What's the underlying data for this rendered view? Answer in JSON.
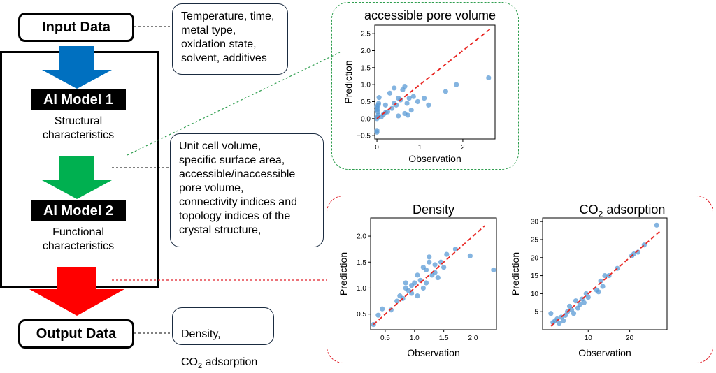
{
  "input_label": "Input Data",
  "output_label": "Output Data",
  "model1": {
    "title": "AI Model 1",
    "desc": "Structural\ncharacteristics"
  },
  "model2": {
    "title": "AI Model 2",
    "desc": "Functional\ncharacteristics"
  },
  "notes": {
    "inputs": "Temperature, time,\nmetal type,\noxidation state,\nsolvent, additives",
    "structural": "Unit cell volume,\nspecific surface area,\naccessible/inaccessible\npore volume,\nconnectivity indices and\ntopology indices of the\ncrystal structure,",
    "output_line1": "Density,",
    "output_line2_prefix": "CO",
    "output_line2_sub": "2",
    "output_line2_suffix": " adsorption"
  },
  "colors": {
    "arrow1": "#0070c0",
    "arrow2": "#00b050",
    "arrow3": "#ff0000",
    "green_border": "#2f9e4f",
    "red_border": "#e0202a",
    "point": "#5b9bd5",
    "fit": "#e8231f"
  },
  "chart_data": [
    {
      "type": "scatter",
      "title": "accessible pore volume",
      "xlabel": "Observation",
      "ylabel": "Prediction",
      "xlim": [
        -0.05,
        2.75
      ],
      "ylim": [
        -0.6,
        2.75
      ],
      "xticks": [
        0,
        1,
        2
      ],
      "xtick_labels": [
        "0",
        "1",
        "2"
      ],
      "yticks": [
        -0.5,
        0,
        0.5,
        1,
        1.5,
        2,
        2.5
      ],
      "ytick_labels": [
        "−0.5",
        "0.0",
        "0.5",
        "1.0",
        "1.5",
        "2.0",
        "2.5"
      ],
      "fit_line": [
        [
          0,
          0
        ],
        [
          2.65,
          2.65
        ]
      ],
      "points": [
        [
          0,
          -0.4
        ],
        [
          0,
          -0.35
        ],
        [
          0,
          0
        ],
        [
          0.02,
          0.05
        ],
        [
          0.03,
          0.1
        ],
        [
          0.02,
          0.2
        ],
        [
          0,
          0.25
        ],
        [
          0.01,
          0.3
        ],
        [
          0,
          0.35
        ],
        [
          0.03,
          0.4
        ],
        [
          0.04,
          0.45
        ],
        [
          0.05,
          0.62
        ],
        [
          0.1,
          0.05
        ],
        [
          0.15,
          0.12
        ],
        [
          0.2,
          0.18
        ],
        [
          0.2,
          0.4
        ],
        [
          0.25,
          0.2
        ],
        [
          0.3,
          0.75
        ],
        [
          0.35,
          0.3
        ],
        [
          0.4,
          0.45
        ],
        [
          0.4,
          0.9
        ],
        [
          0.45,
          0.4
        ],
        [
          0.5,
          0.6
        ],
        [
          0.5,
          0.08
        ],
        [
          0.55,
          0.55
        ],
        [
          0.6,
          0.85
        ],
        [
          0.65,
          0.15
        ],
        [
          0.65,
          0.95
        ],
        [
          0.7,
          0.45
        ],
        [
          0.72,
          0.1
        ],
        [
          0.75,
          0.6
        ],
        [
          0.8,
          0.25
        ],
        [
          0.85,
          0.65
        ],
        [
          0.95,
          0.5
        ],
        [
          1.1,
          0.6
        ],
        [
          1.2,
          0.4
        ],
        [
          1.6,
          0.8
        ],
        [
          1.85,
          1.0
        ],
        [
          2.6,
          1.2
        ]
      ]
    },
    {
      "type": "scatter",
      "title": "Density",
      "xlabel": "Observation",
      "ylabel": "Prediction",
      "xlim": [
        0.25,
        2.4
      ],
      "ylim": [
        0.2,
        2.35
      ],
      "xticks": [
        0.5,
        1.0,
        1.5,
        2.0
      ],
      "xtick_labels": [
        "0.5",
        "1.0",
        "1.5",
        "2.0"
      ],
      "yticks": [
        0.5,
        1.0,
        1.5,
        2.0
      ],
      "ytick_labels": [
        "0.5",
        "1.0",
        "1.5",
        "2.0"
      ],
      "fit_line": [
        [
          0.3,
          0.3
        ],
        [
          2.2,
          2.2
        ]
      ],
      "points": [
        [
          0.3,
          0.3
        ],
        [
          0.38,
          0.48
        ],
        [
          0.45,
          0.6
        ],
        [
          0.6,
          0.58
        ],
        [
          0.7,
          0.75
        ],
        [
          0.75,
          0.85
        ],
        [
          0.8,
          0.8
        ],
        [
          0.85,
          1.0
        ],
        [
          0.85,
          1.1
        ],
        [
          0.9,
          0.95
        ],
        [
          0.95,
          0.9
        ],
        [
          0.95,
          1.05
        ],
        [
          1.0,
          1.1
        ],
        [
          1.05,
          0.85
        ],
        [
          1.05,
          1.25
        ],
        [
          1.1,
          1.15
        ],
        [
          1.15,
          1.0
        ],
        [
          1.15,
          1.4
        ],
        [
          1.2,
          1.1
        ],
        [
          1.2,
          1.35
        ],
        [
          1.25,
          1.5
        ],
        [
          1.25,
          1.6
        ],
        [
          1.3,
          1.25
        ],
        [
          1.35,
          1.3
        ],
        [
          1.35,
          1.45
        ],
        [
          1.4,
          1.2
        ],
        [
          1.45,
          1.5
        ],
        [
          1.5,
          1.4
        ],
        [
          1.55,
          1.65
        ],
        [
          1.7,
          1.75
        ],
        [
          1.95,
          1.62
        ],
        [
          2.35,
          1.35
        ]
      ]
    },
    {
      "type": "scatter",
      "title_prefix": "CO",
      "title_sub": "2",
      "title_suffix": " adsorption",
      "xlabel": "Observation",
      "ylabel": "Prediction",
      "xlim": [
        -1,
        29
      ],
      "ylim": [
        0,
        31
      ],
      "xticks": [
        10,
        20
      ],
      "xtick_labels": [
        "10",
        "20"
      ],
      "yticks": [
        5,
        10,
        15,
        20,
        25,
        30
      ],
      "ytick_labels": [
        "5",
        "10",
        "15",
        "20",
        "25",
        "30"
      ],
      "fit_line": [
        [
          1,
          1
        ],
        [
          27.5,
          27.5
        ]
      ],
      "points": [
        [
          1,
          4.5
        ],
        [
          1.5,
          2
        ],
        [
          2,
          2.5
        ],
        [
          2.5,
          3
        ],
        [
          3,
          1.8
        ],
        [
          3.5,
          3.5
        ],
        [
          4,
          2.5
        ],
        [
          4.5,
          4
        ],
        [
          5,
          5
        ],
        [
          5.5,
          6.5
        ],
        [
          6,
          5.5
        ],
        [
          6.5,
          4.5
        ],
        [
          7,
          8
        ],
        [
          7.5,
          6
        ],
        [
          8,
          7
        ],
        [
          8.5,
          8.5
        ],
        [
          9,
          7.5
        ],
        [
          9.5,
          10
        ],
        [
          10,
          9
        ],
        [
          12,
          11
        ],
        [
          12.5,
          10.5
        ],
        [
          13,
          13.5
        ],
        [
          13.5,
          12
        ],
        [
          14,
          15
        ],
        [
          15,
          15
        ],
        [
          17,
          17
        ],
        [
          20.5,
          20.5
        ],
        [
          21,
          21
        ],
        [
          22,
          21.5
        ],
        [
          23.5,
          23.5
        ],
        [
          26.5,
          29
        ]
      ]
    }
  ]
}
